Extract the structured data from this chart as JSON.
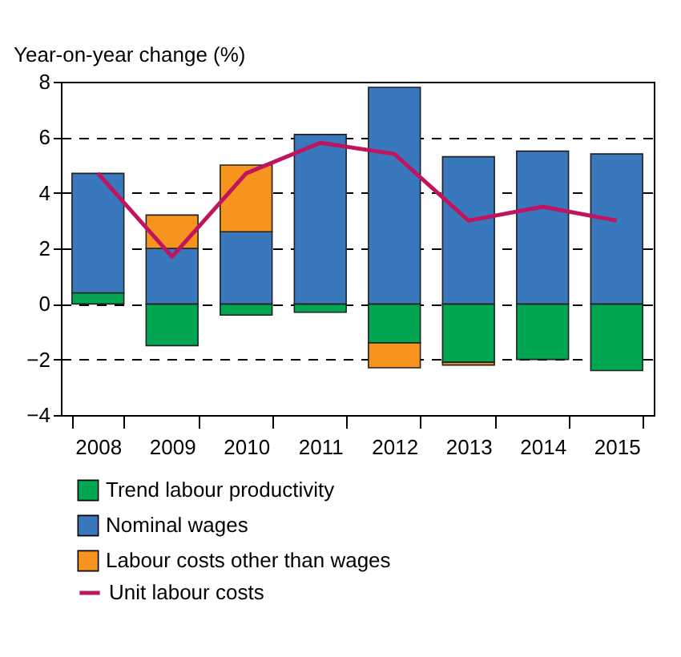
{
  "chart_data": {
    "type": "bar",
    "ylabel": "Year-on-year change (%)",
    "stacked": true,
    "categories": [
      "2008",
      "2009",
      "2010",
      "2011",
      "2012",
      "2013",
      "2014",
      "2015"
    ],
    "series": [
      {
        "name": "Trend labour productivity",
        "color": "#00a651",
        "values": [
          0.4,
          -1.5,
          -0.4,
          -0.3,
          -1.4,
          -2.1,
          -2.0,
          -2.4
        ]
      },
      {
        "name": "Nominal wages",
        "color": "#3a78bd",
        "values": [
          4.3,
          2.0,
          2.6,
          6.1,
          7.8,
          5.3,
          5.5,
          5.4
        ]
      },
      {
        "name": "Labour costs other than wages",
        "color": "#f7941d",
        "values": [
          null,
          1.2,
          2.4,
          null,
          -0.9,
          -0.1,
          null,
          null
        ]
      },
      {
        "name": "Unit labour costs",
        "type": "line",
        "color": "#c0145f",
        "values": [
          4.7,
          1.7,
          4.7,
          5.8,
          5.4,
          3.0,
          3.5,
          3.0
        ]
      }
    ],
    "ylim": [
      -4,
      8
    ],
    "yticks": [
      -4,
      -2,
      0,
      2,
      4,
      6,
      8
    ],
    "grid": "y",
    "legend": "bottom"
  }
}
